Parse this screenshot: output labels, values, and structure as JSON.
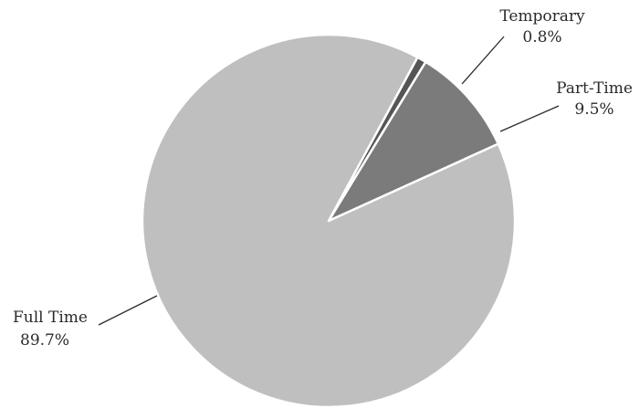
{
  "chart_data": {
    "type": "pie",
    "title": "",
    "slices": [
      {
        "label": "Full Time",
        "value_text": "89.7%",
        "value": 89.7,
        "color": "#bfbfbf"
      },
      {
        "label": "Part-Time",
        "value_text": "9.5%",
        "value": 9.5,
        "color": "#7b7b7b"
      },
      {
        "label": "Temporary",
        "value_text": "0.8%",
        "value": 0.8,
        "color": "#555555"
      }
    ],
    "legend": "none (labels with leader lines)"
  }
}
